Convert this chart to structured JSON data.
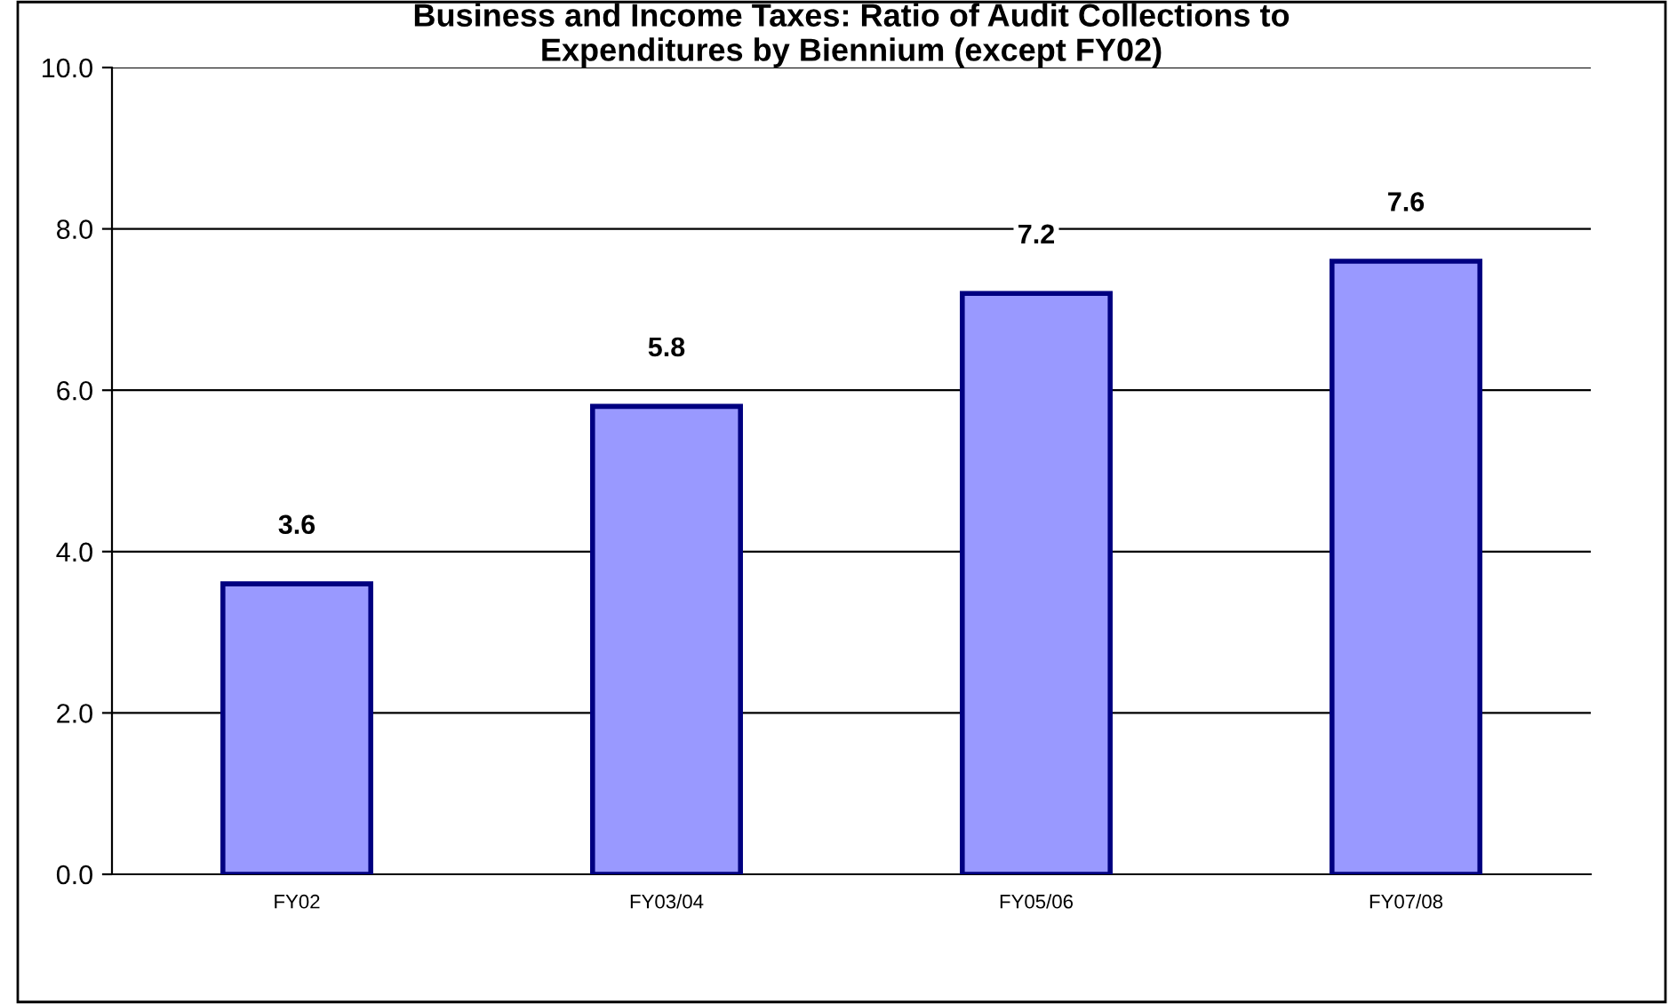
{
  "chart_data": {
    "type": "bar",
    "title": "Business and Income Taxes: Ratio of Audit Collections to\nExpenditures by Biennium (except FY02)",
    "categories": [
      "FY02",
      "FY03/04",
      "FY05/06",
      "FY07/08"
    ],
    "values": [
      3.6,
      5.8,
      7.2,
      7.6
    ],
    "color": "#9999ff",
    "data_labels": true,
    "ylim": [
      0,
      10
    ],
    "yticks": [
      {
        "value": 0,
        "label": "0.0"
      },
      {
        "value": 2,
        "label": "2.0"
      },
      {
        "value": 4,
        "label": "4.0"
      },
      {
        "value": 6,
        "label": "6.0"
      },
      {
        "value": 8,
        "label": "8.0"
      },
      {
        "value": 10,
        "label": "10.0"
      }
    ],
    "grid": "y",
    "legend": false
  }
}
